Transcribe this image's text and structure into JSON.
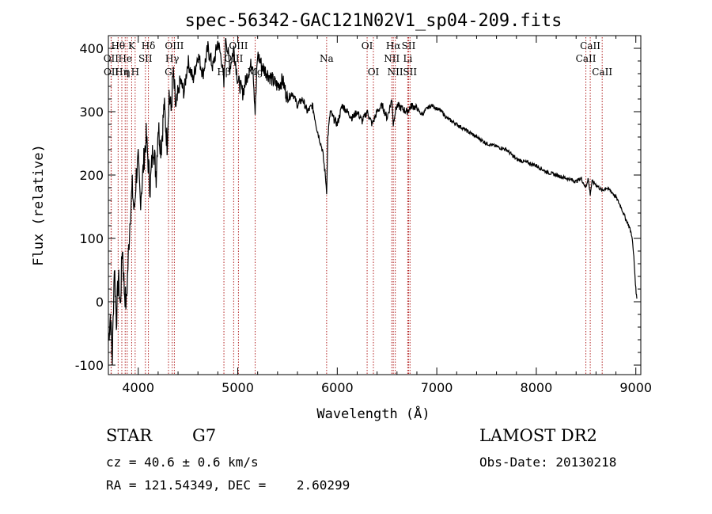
{
  "chart_data": {
    "type": "line",
    "title": "spec-56342-GAC121N02V1_sp04-209.fits",
    "xlabel": "Wavelength (Å)",
    "ylabel": "Flux (relative)",
    "xlim": [
      3700,
      9050
    ],
    "ylim": [
      -115,
      420
    ],
    "xticks": [
      4000,
      5000,
      6000,
      7000,
      8000,
      9000
    ],
    "yticks": [
      -100,
      0,
      100,
      200,
      300,
      400
    ],
    "line_color": "#000000",
    "marker_color": "#b22222",
    "series": [
      {
        "x": [
          3700,
          3720,
          3740,
          3760,
          3780,
          3800,
          3820,
          3840,
          3860,
          3880,
          3900,
          3920,
          3940,
          3960,
          3980,
          4000,
          4020,
          4040,
          4060,
          4080,
          4100,
          4120,
          4150,
          4180,
          4200,
          4230,
          4260,
          4290,
          4310,
          4330,
          4350,
          4380,
          4420,
          4460,
          4500,
          4550,
          4600,
          4650,
          4700,
          4750,
          4800,
          4840,
          4861,
          4880,
          4920,
          4960,
          5000,
          5050,
          5100,
          5150,
          5175,
          5200,
          5250,
          5300,
          5350,
          5400,
          5450,
          5500,
          5550,
          5600,
          5650,
          5700,
          5750,
          5800,
          5850,
          5880,
          5893,
          5905,
          5930,
          5960,
          6000,
          6050,
          6100,
          6150,
          6200,
          6250,
          6300,
          6350,
          6400,
          6450,
          6500,
          6550,
          6563,
          6575,
          6600,
          6650,
          6700,
          6750,
          6800,
          6850,
          6900,
          6950,
          7000,
          7050,
          7100,
          7150,
          7200,
          7300,
          7400,
          7500,
          7600,
          7700,
          7800,
          7900,
          8000,
          8100,
          8200,
          8300,
          8400,
          8450,
          8498,
          8520,
          8542,
          8560,
          8600,
          8662,
          8700,
          8750,
          8800,
          8850,
          8900,
          8930,
          8960,
          8980,
          9000,
          9010
        ],
        "y": [
          -60,
          -20,
          -90,
          60,
          -30,
          40,
          -10,
          90,
          20,
          -5,
          70,
          140,
          180,
          140,
          200,
          220,
          160,
          190,
          230,
          260,
          220,
          180,
          250,
          200,
          280,
          240,
          310,
          250,
          330,
          300,
          360,
          300,
          350,
          330,
          380,
          350,
          390,
          360,
          400,
          370,
          410,
          380,
          340,
          420,
          370,
          400,
          350,
          330,
          360,
          380,
          300,
          390,
          370,
          360,
          350,
          340,
          350,
          320,
          330,
          310,
          320,
          300,
          310,
          270,
          240,
          200,
          175,
          260,
          300,
          290,
          280,
          310,
          300,
          290,
          300,
          285,
          300,
          280,
          300,
          310,
          290,
          320,
          280,
          295,
          310,
          305,
          300,
          310,
          305,
          295,
          305,
          310,
          305,
          300,
          290,
          285,
          280,
          270,
          260,
          250,
          245,
          240,
          225,
          220,
          215,
          205,
          200,
          195,
          190,
          195,
          180,
          195,
          170,
          190,
          185,
          175,
          180,
          175,
          165,
          150,
          130,
          120,
          105,
          70,
          20,
          5
        ]
      }
    ],
    "lines": [
      {
        "x": 3798,
        "label": "Hθ",
        "row": 0
      },
      {
        "x": 3835,
        "label": "Hη",
        "row": 2
      },
      {
        "x": 3869,
        "label": "He",
        "row": 1
      },
      {
        "x": 3889,
        "label": "η",
        "row": 2
      },
      {
        "x": 3934,
        "label": "K",
        "row": 0
      },
      {
        "x": 3969,
        "label": "H",
        "row": 2
      },
      {
        "x": 3727,
        "label": "OII",
        "row": 1
      },
      {
        "x": 3729,
        "label": "OII",
        "row": 2
      },
      {
        "x": 4072,
        "label": "SII",
        "row": 1
      },
      {
        "x": 4102,
        "label": "Hδ",
        "row": 0
      },
      {
        "x": 4304,
        "label": "G",
        "row": 2
      },
      {
        "x": 4341,
        "label": "Hγ",
        "row": 1
      },
      {
        "x": 4363,
        "label": "OIII",
        "row": 0
      },
      {
        "x": 4861,
        "label": "Hβ",
        "row": 2
      },
      {
        "x": 4959,
        "label": "OIII",
        "row": 1
      },
      {
        "x": 5007,
        "label": "OIII",
        "row": 0
      },
      {
        "x": 5175,
        "label": "Mg",
        "row": 2
      },
      {
        "x": 5893,
        "label": "Na",
        "row": 1
      },
      {
        "x": 6300,
        "label": "OI",
        "row": 0
      },
      {
        "x": 6363,
        "label": "OI",
        "row": 2
      },
      {
        "x": 6548,
        "label": "NII",
        "row": 1
      },
      {
        "x": 6563,
        "label": "Hα",
        "row": 0
      },
      {
        "x": 6583,
        "label": "NII",
        "row": 2
      },
      {
        "x": 6708,
        "label": "Li",
        "row": 1
      },
      {
        "x": 6717,
        "label": "SII",
        "row": 0
      },
      {
        "x": 6731,
        "label": "SII",
        "row": 2
      },
      {
        "x": 8498,
        "label": "CaII",
        "row": 1
      },
      {
        "x": 8542,
        "label": "CaII",
        "row": 0
      },
      {
        "x": 8662,
        "label": "CaII",
        "row": 2
      }
    ]
  },
  "info": {
    "class_label": "STAR",
    "subclass": "G7",
    "survey": "LAMOST DR2",
    "cz": "cz = 40.6 ± 0.6 km/s",
    "obs_date": "Obs-Date: 20130218",
    "coords": "RA = 121.54349, DEC =    2.60299"
  }
}
